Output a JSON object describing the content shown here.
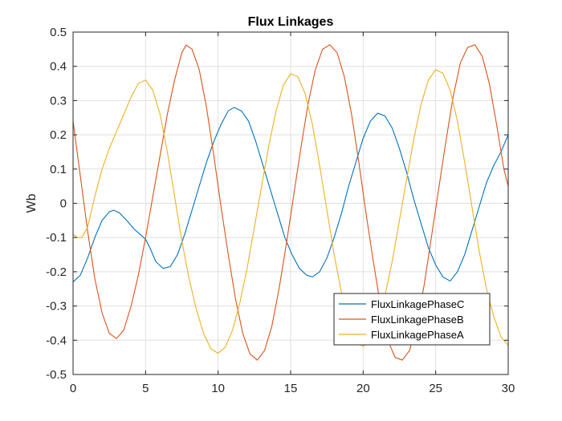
{
  "chart_data": {
    "type": "line",
    "title": "Flux Linkages",
    "xlabel": "",
    "ylabel": "Wb",
    "xlim": [
      0,
      30
    ],
    "ylim": [
      -0.5,
      0.5
    ],
    "x_ticks": [
      0,
      5,
      10,
      15,
      20,
      25,
      30
    ],
    "y_ticks": [
      -0.5,
      -0.4,
      -0.3,
      -0.2,
      -0.1,
      0,
      0.1,
      0.2,
      0.3,
      0.4,
      0.5
    ],
    "grid": true,
    "legend_position": "bottom-right",
    "series": [
      {
        "name": "FluxLinkagePhaseC",
        "color": "#0072BD",
        "points": [
          [
            0,
            -0.23
          ],
          [
            0.5,
            -0.21
          ],
          [
            1,
            -0.16
          ],
          [
            1.5,
            -0.1
          ],
          [
            2,
            -0.05
          ],
          [
            2.5,
            -0.025
          ],
          [
            2.8,
            -0.02
          ],
          [
            3.2,
            -0.028
          ],
          [
            3.7,
            -0.05
          ],
          [
            4.2,
            -0.075
          ],
          [
            4.6,
            -0.09
          ],
          [
            5,
            -0.105
          ],
          [
            5.3,
            -0.13
          ],
          [
            5.7,
            -0.17
          ],
          [
            6.2,
            -0.19
          ],
          [
            6.7,
            -0.185
          ],
          [
            7.2,
            -0.15
          ],
          [
            7.7,
            -0.09
          ],
          [
            8.2,
            -0.02
          ],
          [
            8.7,
            0.05
          ],
          [
            9.2,
            0.12
          ],
          [
            9.7,
            0.18
          ],
          [
            10.2,
            0.23
          ],
          [
            10.7,
            0.27
          ],
          [
            11.1,
            0.28
          ],
          [
            11.6,
            0.27
          ],
          [
            12.1,
            0.24
          ],
          [
            12.6,
            0.18
          ],
          [
            13.1,
            0.11
          ],
          [
            13.6,
            0.04
          ],
          [
            14.1,
            -0.03
          ],
          [
            14.6,
            -0.1
          ],
          [
            15.1,
            -0.15
          ],
          [
            15.6,
            -0.19
          ],
          [
            16.1,
            -0.21
          ],
          [
            16.5,
            -0.215
          ],
          [
            17,
            -0.2
          ],
          [
            17.5,
            -0.16
          ],
          [
            18,
            -0.1
          ],
          [
            18.5,
            -0.03
          ],
          [
            19,
            0.05
          ],
          [
            19.5,
            0.12
          ],
          [
            20,
            0.19
          ],
          [
            20.5,
            0.24
          ],
          [
            21,
            0.263
          ],
          [
            21.5,
            0.255
          ],
          [
            22,
            0.22
          ],
          [
            22.5,
            0.16
          ],
          [
            23,
            0.09
          ],
          [
            23.5,
            0.01
          ],
          [
            24,
            -0.06
          ],
          [
            24.5,
            -0.13
          ],
          [
            25,
            -0.18
          ],
          [
            25.5,
            -0.215
          ],
          [
            26,
            -0.227
          ],
          [
            26.5,
            -0.2
          ],
          [
            27,
            -0.15
          ],
          [
            27.5,
            -0.08
          ],
          [
            28,
            -0.01
          ],
          [
            28.5,
            0.06
          ],
          [
            29,
            0.11
          ],
          [
            29.5,
            0.15
          ],
          [
            30,
            0.2
          ]
        ]
      },
      {
        "name": "FluxLinkagePhaseB",
        "color": "#D95319",
        "points": [
          [
            0,
            0.24
          ],
          [
            0.5,
            0.08
          ],
          [
            1,
            -0.08
          ],
          [
            1.5,
            -0.22
          ],
          [
            2,
            -0.32
          ],
          [
            2.5,
            -0.38
          ],
          [
            3,
            -0.395
          ],
          [
            3.5,
            -0.37
          ],
          [
            4,
            -0.3
          ],
          [
            4.5,
            -0.21
          ],
          [
            5,
            -0.1
          ],
          [
            5.5,
            0.02
          ],
          [
            6,
            0.14
          ],
          [
            6.5,
            0.26
          ],
          [
            7,
            0.36
          ],
          [
            7.5,
            0.44
          ],
          [
            7.8,
            0.462
          ],
          [
            8.2,
            0.45
          ],
          [
            8.7,
            0.39
          ],
          [
            9.2,
            0.28
          ],
          [
            9.7,
            0.14
          ],
          [
            10.2,
            -0.01
          ],
          [
            10.7,
            -0.15
          ],
          [
            11.2,
            -0.28
          ],
          [
            11.7,
            -0.38
          ],
          [
            12.2,
            -0.44
          ],
          [
            12.7,
            -0.458
          ],
          [
            13.2,
            -0.43
          ],
          [
            13.7,
            -0.36
          ],
          [
            14.2,
            -0.25
          ],
          [
            14.7,
            -0.12
          ],
          [
            15.2,
            0.02
          ],
          [
            15.7,
            0.16
          ],
          [
            16.2,
            0.29
          ],
          [
            16.7,
            0.39
          ],
          [
            17.2,
            0.45
          ],
          [
            17.7,
            0.463
          ],
          [
            18.2,
            0.44
          ],
          [
            18.7,
            0.37
          ],
          [
            19.2,
            0.26
          ],
          [
            19.7,
            0.12
          ],
          [
            20.2,
            -0.03
          ],
          [
            20.7,
            -0.17
          ],
          [
            21.2,
            -0.3
          ],
          [
            21.7,
            -0.4
          ],
          [
            22.2,
            -0.45
          ],
          [
            22.7,
            -0.458
          ],
          [
            23.2,
            -0.43
          ],
          [
            23.7,
            -0.35
          ],
          [
            24.2,
            -0.24
          ],
          [
            24.7,
            -0.1
          ],
          [
            25.2,
            0.04
          ],
          [
            25.7,
            0.18
          ],
          [
            26.2,
            0.31
          ],
          [
            26.7,
            0.41
          ],
          [
            27.2,
            0.455
          ],
          [
            27.7,
            0.463
          ],
          [
            28.2,
            0.43
          ],
          [
            28.7,
            0.35
          ],
          [
            29.2,
            0.23
          ],
          [
            29.7,
            0.1
          ],
          [
            30,
            0.05
          ]
        ]
      },
      {
        "name": "FluxLinkagePhaseA",
        "color": "#EDB120",
        "points": [
          [
            0,
            -0.09
          ],
          [
            0.3,
            -0.1
          ],
          [
            0.6,
            -0.1
          ],
          [
            1,
            -0.07
          ],
          [
            1.5,
            0.02
          ],
          [
            2,
            0.1
          ],
          [
            2.5,
            0.16
          ],
          [
            3,
            0.21
          ],
          [
            3.5,
            0.26
          ],
          [
            4,
            0.31
          ],
          [
            4.5,
            0.35
          ],
          [
            5,
            0.36
          ],
          [
            5.5,
            0.33
          ],
          [
            6,
            0.26
          ],
          [
            6.5,
            0.15
          ],
          [
            7,
            0.02
          ],
          [
            7.5,
            -0.11
          ],
          [
            8,
            -0.22
          ],
          [
            8.5,
            -0.31
          ],
          [
            9,
            -0.38
          ],
          [
            9.5,
            -0.425
          ],
          [
            10,
            -0.438
          ],
          [
            10.5,
            -0.42
          ],
          [
            11,
            -0.37
          ],
          [
            11.5,
            -0.29
          ],
          [
            12,
            -0.19
          ],
          [
            12.5,
            -0.07
          ],
          [
            13,
            0.05
          ],
          [
            13.5,
            0.17
          ],
          [
            14,
            0.27
          ],
          [
            14.5,
            0.345
          ],
          [
            15,
            0.378
          ],
          [
            15.5,
            0.37
          ],
          [
            16,
            0.32
          ],
          [
            16.5,
            0.23
          ],
          [
            17,
            0.11
          ],
          [
            17.5,
            -0.02
          ],
          [
            18,
            -0.15
          ],
          [
            18.5,
            -0.26
          ],
          [
            19,
            -0.35
          ],
          [
            19.5,
            -0.405
          ],
          [
            20,
            -0.418
          ],
          [
            20.5,
            -0.4
          ],
          [
            21,
            -0.35
          ],
          [
            21.5,
            -0.27
          ],
          [
            22,
            -0.17
          ],
          [
            22.5,
            -0.05
          ],
          [
            23,
            0.07
          ],
          [
            23.5,
            0.19
          ],
          [
            24,
            0.29
          ],
          [
            24.5,
            0.36
          ],
          [
            25,
            0.39
          ],
          [
            25.5,
            0.38
          ],
          [
            26,
            0.33
          ],
          [
            26.5,
            0.24
          ],
          [
            27,
            0.12
          ],
          [
            27.5,
            -0.01
          ],
          [
            28,
            -0.14
          ],
          [
            28.5,
            -0.25
          ],
          [
            29,
            -0.33
          ],
          [
            29.5,
            -0.39
          ],
          [
            30,
            -0.415
          ]
        ]
      }
    ]
  }
}
